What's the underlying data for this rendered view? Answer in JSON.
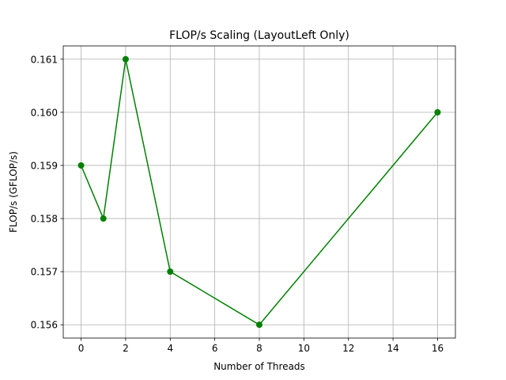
{
  "chart_data": {
    "type": "line",
    "title": "FLOP/s Scaling (LayoutLeft Only)",
    "xlabel": "Number of Threads",
    "ylabel": "FLOP/s (GFLOP/s)",
    "x": [
      0,
      1,
      2,
      4,
      8,
      16
    ],
    "series": [
      {
        "values": [
          0.159,
          0.158,
          0.161,
          0.157,
          0.156,
          0.16
        ],
        "color": "#008000",
        "marker": "circle"
      }
    ],
    "xlim": [
      -0.8,
      16.8
    ],
    "ylim": [
      0.15575,
      0.16125
    ],
    "xticks": [
      0,
      2,
      4,
      6,
      8,
      10,
      12,
      14,
      16
    ],
    "xtick_labels": [
      "0",
      "2",
      "4",
      "6",
      "8",
      "10",
      "12",
      "14",
      "16"
    ],
    "yticks": [
      0.156,
      0.157,
      0.158,
      0.159,
      0.16,
      0.161
    ],
    "ytick_labels": [
      "0.156",
      "0.157",
      "0.158",
      "0.159",
      "0.160",
      "0.161"
    ],
    "grid": true,
    "legend": "none"
  }
}
